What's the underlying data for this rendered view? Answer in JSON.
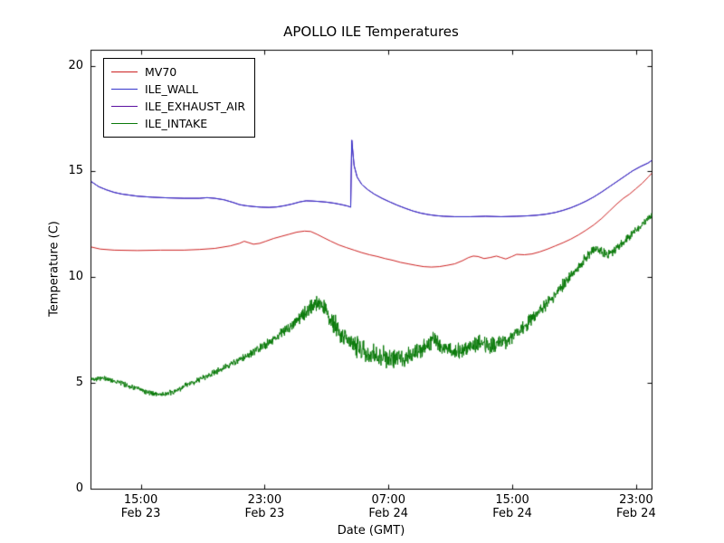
{
  "chart_data": {
    "type": "line",
    "title": "APOLLO ILE Temperatures",
    "xlabel": "Date (GMT)",
    "ylabel": "Temperature (C)",
    "ylim": [
      0,
      20.75
    ],
    "yticks": [
      0,
      5,
      10,
      15,
      20
    ],
    "x_unit": "hours_from_plot_start",
    "xlim": [
      0,
      36.25
    ],
    "xticks": [
      {
        "pos": 3.25,
        "time": "15:00",
        "date": "Feb 23"
      },
      {
        "pos": 11.25,
        "time": "23:00",
        "date": "Feb 23"
      },
      {
        "pos": 19.25,
        "time": "07:00",
        "date": "Feb 24"
      },
      {
        "pos": 27.25,
        "time": "15:00",
        "date": "Feb 24"
      },
      {
        "pos": 35.25,
        "time": "23:00",
        "date": "Feb 24"
      }
    ],
    "grid": false,
    "legend_position": "upper left",
    "series": [
      {
        "name": "MV70",
        "color": "#cc2020",
        "zorder": 3,
        "points": [
          [
            0,
            11.45
          ],
          [
            0.6,
            11.35
          ],
          [
            1.5,
            11.3
          ],
          [
            3,
            11.28
          ],
          [
            4.5,
            11.3
          ],
          [
            6,
            11.3
          ],
          [
            7,
            11.33
          ],
          [
            8,
            11.38
          ],
          [
            9,
            11.5
          ],
          [
            9.6,
            11.62
          ],
          [
            9.9,
            11.72
          ],
          [
            10.2,
            11.65
          ],
          [
            10.5,
            11.58
          ],
          [
            10.9,
            11.62
          ],
          [
            11.3,
            11.72
          ],
          [
            11.8,
            11.85
          ],
          [
            12.3,
            11.95
          ],
          [
            12.8,
            12.05
          ],
          [
            13.3,
            12.15
          ],
          [
            13.8,
            12.2
          ],
          [
            14.2,
            12.18
          ],
          [
            14.6,
            12.05
          ],
          [
            15,
            11.9
          ],
          [
            15.5,
            11.72
          ],
          [
            16,
            11.55
          ],
          [
            16.5,
            11.42
          ],
          [
            17,
            11.3
          ],
          [
            17.5,
            11.18
          ],
          [
            18,
            11.08
          ],
          [
            18.5,
            11.0
          ],
          [
            19,
            10.9
          ],
          [
            19.5,
            10.82
          ],
          [
            20,
            10.72
          ],
          [
            20.5,
            10.65
          ],
          [
            21,
            10.58
          ],
          [
            21.5,
            10.52
          ],
          [
            22,
            10.5
          ],
          [
            22.5,
            10.52
          ],
          [
            23,
            10.58
          ],
          [
            23.5,
            10.65
          ],
          [
            24,
            10.8
          ],
          [
            24.4,
            10.95
          ],
          [
            24.7,
            11.02
          ],
          [
            25,
            11.0
          ],
          [
            25.4,
            10.9
          ],
          [
            25.8,
            10.95
          ],
          [
            26.2,
            11.02
          ],
          [
            26.5,
            10.95
          ],
          [
            26.8,
            10.88
          ],
          [
            27.2,
            11.0
          ],
          [
            27.5,
            11.1
          ],
          [
            28,
            11.08
          ],
          [
            28.5,
            11.12
          ],
          [
            29,
            11.22
          ],
          [
            29.5,
            11.35
          ],
          [
            30,
            11.5
          ],
          [
            30.5,
            11.65
          ],
          [
            31,
            11.82
          ],
          [
            31.5,
            12.02
          ],
          [
            32,
            12.25
          ],
          [
            32.5,
            12.5
          ],
          [
            33,
            12.8
          ],
          [
            33.5,
            13.15
          ],
          [
            34,
            13.5
          ],
          [
            34.4,
            13.75
          ],
          [
            34.8,
            13.95
          ],
          [
            35.2,
            14.2
          ],
          [
            35.6,
            14.45
          ],
          [
            36,
            14.75
          ],
          [
            36.25,
            14.95
          ]
        ]
      },
      {
        "name": "ILE_WALL",
        "color": "#3535cc",
        "zorder": 2,
        "points": [
          [
            0,
            14.55
          ],
          [
            0.5,
            14.3
          ],
          [
            1,
            14.15
          ],
          [
            1.5,
            14.03
          ],
          [
            2,
            13.95
          ],
          [
            2.5,
            13.9
          ],
          [
            3,
            13.85
          ],
          [
            4,
            13.8
          ],
          [
            5,
            13.77
          ],
          [
            6,
            13.75
          ],
          [
            7,
            13.75
          ],
          [
            7.5,
            13.78
          ],
          [
            8,
            13.75
          ],
          [
            8.6,
            13.68
          ],
          [
            9.2,
            13.55
          ],
          [
            9.6,
            13.45
          ],
          [
            10,
            13.4
          ],
          [
            10.5,
            13.36
          ],
          [
            11,
            13.33
          ],
          [
            11.5,
            13.32
          ],
          [
            12,
            13.34
          ],
          [
            12.5,
            13.4
          ],
          [
            13,
            13.48
          ],
          [
            13.5,
            13.58
          ],
          [
            13.9,
            13.63
          ],
          [
            14.3,
            13.62
          ],
          [
            14.7,
            13.6
          ],
          [
            15.2,
            13.57
          ],
          [
            15.7,
            13.52
          ],
          [
            16.2,
            13.45
          ],
          [
            16.6,
            13.38
          ],
          [
            16.78,
            13.33
          ],
          [
            16.85,
            16.5
          ],
          [
            17.0,
            15.3
          ],
          [
            17.2,
            14.75
          ],
          [
            17.5,
            14.4
          ],
          [
            17.9,
            14.15
          ],
          [
            18.3,
            13.95
          ],
          [
            18.8,
            13.75
          ],
          [
            19.3,
            13.58
          ],
          [
            19.8,
            13.42
          ],
          [
            20.3,
            13.28
          ],
          [
            20.8,
            13.15
          ],
          [
            21.3,
            13.05
          ],
          [
            21.8,
            12.98
          ],
          [
            22.3,
            12.93
          ],
          [
            22.8,
            12.9
          ],
          [
            23.5,
            12.88
          ],
          [
            24.5,
            12.88
          ],
          [
            25.5,
            12.9
          ],
          [
            26.5,
            12.88
          ],
          [
            27.5,
            12.9
          ],
          [
            28.2,
            12.92
          ],
          [
            28.8,
            12.95
          ],
          [
            29.4,
            13.0
          ],
          [
            30,
            13.08
          ],
          [
            30.5,
            13.18
          ],
          [
            31,
            13.3
          ],
          [
            31.5,
            13.45
          ],
          [
            32,
            13.62
          ],
          [
            32.5,
            13.82
          ],
          [
            33,
            14.05
          ],
          [
            33.5,
            14.3
          ],
          [
            34,
            14.55
          ],
          [
            34.5,
            14.8
          ],
          [
            35,
            15.05
          ],
          [
            35.5,
            15.25
          ],
          [
            36,
            15.42
          ],
          [
            36.25,
            15.55
          ]
        ]
      },
      {
        "name": "ILE_EXHAUST_AIR",
        "color": "#5a10a0",
        "zorder": 1,
        "points": [
          [
            0,
            14.55
          ],
          [
            0.5,
            14.3
          ],
          [
            1,
            14.15
          ],
          [
            1.5,
            14.03
          ],
          [
            2,
            13.95
          ],
          [
            2.5,
            13.9
          ],
          [
            3,
            13.85
          ],
          [
            4,
            13.8
          ],
          [
            5,
            13.77
          ],
          [
            6,
            13.75
          ],
          [
            7,
            13.75
          ],
          [
            7.5,
            13.78
          ],
          [
            8,
            13.75
          ],
          [
            8.6,
            13.68
          ],
          [
            9.2,
            13.55
          ],
          [
            9.6,
            13.45
          ],
          [
            10,
            13.4
          ],
          [
            10.5,
            13.36
          ],
          [
            11,
            13.33
          ],
          [
            11.5,
            13.32
          ],
          [
            12,
            13.34
          ],
          [
            12.5,
            13.4
          ],
          [
            13,
            13.48
          ],
          [
            13.5,
            13.58
          ],
          [
            13.9,
            13.63
          ],
          [
            14.3,
            13.62
          ],
          [
            14.7,
            13.6
          ],
          [
            15.2,
            13.57
          ],
          [
            15.7,
            13.52
          ],
          [
            16.2,
            13.45
          ],
          [
            16.6,
            13.38
          ],
          [
            16.78,
            13.33
          ],
          [
            16.85,
            16.5
          ],
          [
            17.0,
            15.3
          ],
          [
            17.2,
            14.75
          ],
          [
            17.5,
            14.4
          ],
          [
            17.9,
            14.15
          ],
          [
            18.3,
            13.95
          ],
          [
            18.8,
            13.75
          ],
          [
            19.3,
            13.58
          ],
          [
            19.8,
            13.42
          ],
          [
            20.3,
            13.28
          ],
          [
            20.8,
            13.15
          ],
          [
            21.3,
            13.05
          ],
          [
            21.8,
            12.98
          ],
          [
            22.3,
            12.93
          ],
          [
            22.8,
            12.9
          ],
          [
            23.5,
            12.88
          ],
          [
            24.5,
            12.88
          ],
          [
            25.5,
            12.9
          ],
          [
            26.5,
            12.88
          ],
          [
            27.5,
            12.9
          ],
          [
            28.2,
            12.92
          ],
          [
            28.8,
            12.95
          ],
          [
            29.4,
            13.0
          ],
          [
            30,
            13.08
          ],
          [
            30.5,
            13.18
          ],
          [
            31,
            13.3
          ],
          [
            31.5,
            13.45
          ],
          [
            32,
            13.62
          ],
          [
            32.5,
            13.82
          ],
          [
            33,
            14.05
          ],
          [
            33.5,
            14.3
          ],
          [
            34,
            14.55
          ],
          [
            34.5,
            14.8
          ],
          [
            35,
            15.05
          ],
          [
            35.5,
            15.25
          ],
          [
            36,
            15.42
          ],
          [
            36.25,
            15.55
          ]
        ]
      },
      {
        "name": "ILE_INTAKE",
        "color": "#0a7a0a",
        "zorder": 4,
        "noise": [
          [
            0,
            0.07
          ],
          [
            6,
            0.08
          ],
          [
            10,
            0.1
          ],
          [
            13,
            0.15
          ],
          [
            15,
            0.25
          ],
          [
            16,
            0.3
          ],
          [
            18,
            0.3
          ],
          [
            22,
            0.25
          ],
          [
            26,
            0.22
          ],
          [
            29,
            0.2
          ],
          [
            32,
            0.15
          ],
          [
            34,
            0.12
          ],
          [
            36.25,
            0.1
          ]
        ],
        "points": [
          [
            0,
            5.2
          ],
          [
            0.6,
            5.25
          ],
          [
            1.2,
            5.18
          ],
          [
            1.8,
            5.05
          ],
          [
            2.4,
            4.9
          ],
          [
            3,
            4.75
          ],
          [
            3.6,
            4.6
          ],
          [
            4.2,
            4.5
          ],
          [
            4.8,
            4.48
          ],
          [
            5.4,
            4.6
          ],
          [
            6,
            4.85
          ],
          [
            6.6,
            5.05
          ],
          [
            7.2,
            5.25
          ],
          [
            7.8,
            5.45
          ],
          [
            8.4,
            5.65
          ],
          [
            9,
            5.9
          ],
          [
            9.6,
            6.1
          ],
          [
            10.2,
            6.35
          ],
          [
            10.8,
            6.6
          ],
          [
            11.4,
            6.9
          ],
          [
            12,
            7.2
          ],
          [
            12.6,
            7.55
          ],
          [
            13.2,
            7.9
          ],
          [
            13.7,
            8.2
          ],
          [
            14.1,
            8.5
          ],
          [
            14.4,
            8.75
          ],
          [
            14.7,
            8.85
          ],
          [
            15,
            8.6
          ],
          [
            15.3,
            8.25
          ],
          [
            15.7,
            7.8
          ],
          [
            16.1,
            7.4
          ],
          [
            16.5,
            7.1
          ],
          [
            17,
            6.85
          ],
          [
            17.5,
            6.6
          ],
          [
            18,
            6.4
          ],
          [
            18.5,
            6.3
          ],
          [
            19,
            6.25
          ],
          [
            19.5,
            6.15
          ],
          [
            20,
            6.2
          ],
          [
            20.5,
            6.3
          ],
          [
            21,
            6.4
          ],
          [
            21.4,
            6.55
          ],
          [
            21.8,
            6.9
          ],
          [
            22.1,
            7.1
          ],
          [
            22.4,
            6.95
          ],
          [
            22.8,
            6.7
          ],
          [
            23.2,
            6.55
          ],
          [
            23.7,
            6.5
          ],
          [
            24.2,
            6.6
          ],
          [
            24.7,
            6.8
          ],
          [
            25.1,
            6.95
          ],
          [
            25.5,
            6.85
          ],
          [
            25.9,
            6.78
          ],
          [
            26.4,
            6.9
          ],
          [
            26.9,
            7.05
          ],
          [
            27.4,
            7.3
          ],
          [
            27.9,
            7.6
          ],
          [
            28.3,
            7.9
          ],
          [
            28.7,
            8.2
          ],
          [
            29.1,
            8.5
          ],
          [
            29.6,
            8.9
          ],
          [
            30.1,
            9.3
          ],
          [
            30.6,
            9.75
          ],
          [
            31.1,
            10.15
          ],
          [
            31.5,
            10.5
          ],
          [
            31.9,
            10.85
          ],
          [
            32.2,
            11.1
          ],
          [
            32.5,
            11.4
          ],
          [
            32.8,
            11.3
          ],
          [
            33.1,
            11.15
          ],
          [
            33.5,
            11.1
          ],
          [
            33.9,
            11.35
          ],
          [
            34.3,
            11.6
          ],
          [
            34.7,
            11.9
          ],
          [
            35.1,
            12.15
          ],
          [
            35.5,
            12.4
          ],
          [
            35.9,
            12.7
          ],
          [
            36.25,
            12.95
          ]
        ]
      }
    ]
  }
}
